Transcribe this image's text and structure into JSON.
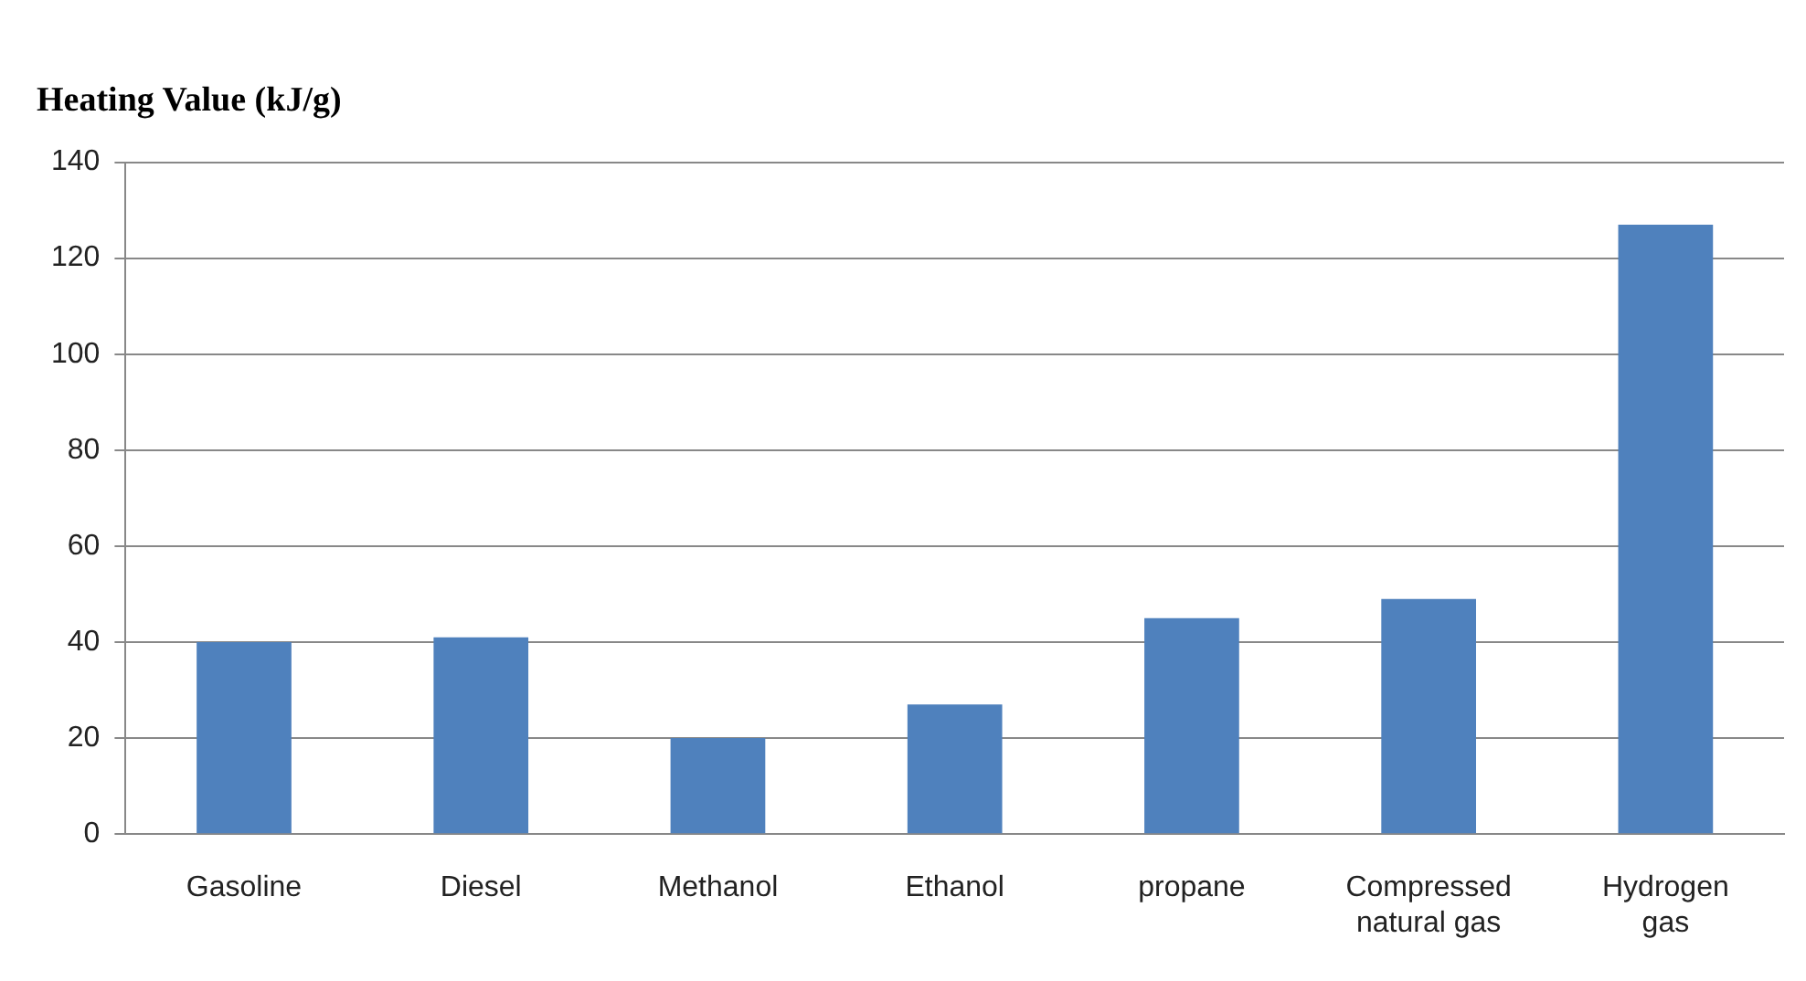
{
  "chart_data": {
    "type": "bar",
    "ylabel": "Heating Value (kJ/g)",
    "categories": [
      "Gasoline",
      "Diesel",
      "Methanol",
      "Ethanol",
      "propane",
      "Compressed natural gas",
      "Hydrogen gas"
    ],
    "values": [
      40,
      41,
      20,
      27,
      45,
      49,
      127
    ],
    "color": "#4f81bd",
    "ylim": [
      0,
      140
    ],
    "yticks": [
      0,
      20,
      40,
      60,
      80,
      100,
      120,
      140
    ],
    "grid": "y",
    "legend": false
  }
}
